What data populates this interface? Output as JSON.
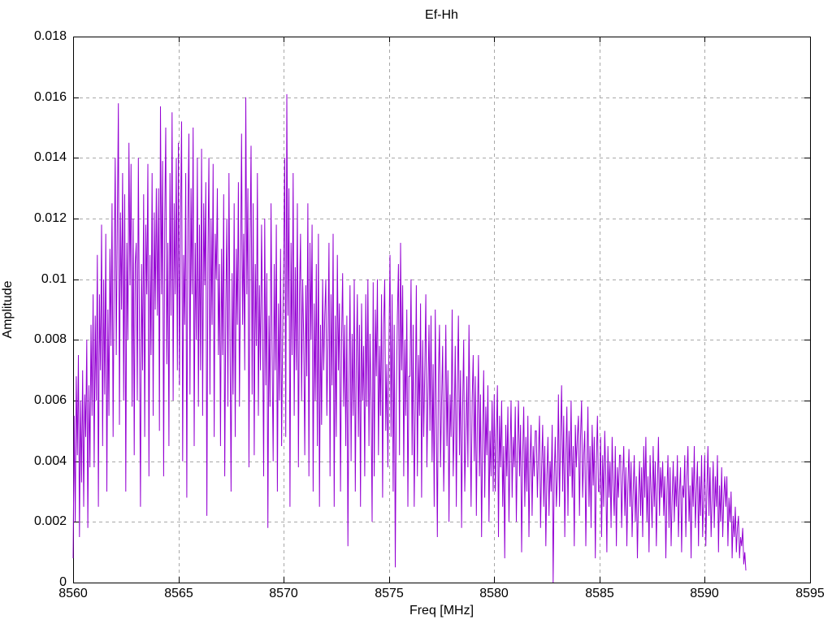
{
  "colors": {
    "line": "#9400d3",
    "grid": "#a8a8a8",
    "border": "#000000",
    "background": "#ffffff",
    "text": "#000000"
  },
  "chart_data": {
    "type": "line",
    "title": "Ef-Hh",
    "xlabel": "Freq [MHz]",
    "ylabel": "Amplitude",
    "xlim": [
      8560,
      8595
    ],
    "ylim": [
      0,
      0.018
    ],
    "grid": true,
    "legend": false,
    "line_color": "#9400d3",
    "x_tick_labels": [
      "8560",
      "8565",
      "8570",
      "8575",
      "8580",
      "8585",
      "8590",
      "8595"
    ],
    "y_tick_labels": [
      "0",
      "0.002",
      "0.004",
      "0.006",
      "0.008",
      "0.01",
      "0.012",
      "0.014",
      "0.016",
      "0.018"
    ],
    "x_start": 8560,
    "x_step": 0.05,
    "y_scale": 0.0001,
    "values_e4": [
      8,
      55,
      20,
      68,
      42,
      75,
      15,
      60,
      33,
      70,
      25,
      62,
      48,
      80,
      18,
      65,
      38,
      85,
      55,
      95,
      38,
      88,
      60,
      108,
      25,
      95,
      70,
      118,
      45,
      100,
      62,
      115,
      30,
      90,
      55,
      110,
      78,
      125,
      48,
      102,
      140,
      75,
      118,
      158,
      52,
      122,
      90,
      135,
      60,
      128,
      30,
      112,
      80,
      145,
      98,
      138,
      58,
      120,
      42,
      105,
      112,
      60,
      140,
      85,
      25,
      105,
      70,
      128,
      48,
      118,
      95,
      138,
      35,
      108,
      75,
      135,
      55,
      122,
      90,
      130,
      88,
      130,
      50,
      157,
      95,
      139,
      35,
      118,
      150,
      72,
      112,
      45,
      135,
      88,
      155,
      60,
      125,
      95,
      140,
      70,
      145,
      65,
      120,
      152,
      40,
      108,
      85,
      135,
      28,
      118,
      148,
      62,
      130,
      95,
      150,
      45,
      112,
      80,
      140,
      58,
      118,
      70,
      143,
      55,
      125,
      98,
      132,
      22,
      108,
      140,
      62,
      120,
      85,
      138,
      48,
      115,
      100,
      130,
      75,
      105,
      45,
      110,
      75,
      128,
      35,
      90,
      120,
      58,
      135,
      80,
      30,
      102,
      62,
      125,
      48,
      110,
      85,
      132,
      58,
      100,
      148,
      85,
      115,
      70,
      160,
      95,
      130,
      38,
      110,
      144,
      62,
      125,
      42,
      105,
      78,
      135,
      55,
      98,
      70,
      118,
      85,
      35,
      120,
      65,
      102,
      18,
      88,
      58,
      125,
      75,
      40,
      105,
      70,
      118,
      30,
      92,
      60,
      110,
      45,
      80,
      105,
      140,
      48,
      161,
      88,
      130,
      25,
      112,
      75,
      135,
      55,
      104,
      70,
      125,
      38,
      95,
      115,
      60,
      100,
      80,
      42,
      98,
      68,
      125,
      35,
      112,
      80,
      118,
      30,
      92,
      60,
      105,
      45,
      115,
      25,
      85,
      52,
      100,
      70,
      88,
      100,
      55,
      78,
      112,
      35,
      95,
      65,
      115,
      25,
      88,
      48,
      108,
      70,
      92,
      30,
      80,
      102,
      58,
      85,
      45,
      88,
      12,
      65,
      98,
      40,
      82,
      55,
      100,
      30,
      72,
      95,
      48,
      85,
      25,
      92,
      60,
      78,
      35,
      95,
      58,
      100,
      45,
      82,
      60,
      20,
      99,
      35,
      90,
      68,
      100,
      42,
      78,
      55,
      95,
      28,
      85,
      100,
      50,
      72,
      38,
      78,
      108,
      48,
      95,
      30,
      85,
      5,
      62,
      88,
      105,
      42,
      112,
      70,
      98,
      35,
      80,
      55,
      90,
      25,
      68,
      68,
      100,
      42,
      85,
      25,
      58,
      98,
      35,
      75,
      55,
      92,
      28,
      80,
      48,
      70,
      95,
      38,
      62,
      85,
      50,
      88,
      40,
      72,
      25,
      90,
      55,
      15,
      68,
      85,
      38,
      60,
      78,
      30,
      52,
      85,
      45,
      70,
      20,
      62,
      48,
      90,
      35,
      52,
      78,
      25,
      65,
      88,
      42,
      70,
      18,
      58,
      80,
      30,
      48,
      68,
      38,
      85,
      55,
      25,
      60,
      75,
      40,
      68,
      22,
      55,
      75,
      35,
      62,
      15,
      48,
      70,
      28,
      58,
      42,
      65,
      20,
      50,
      35,
      60,
      30,
      62,
      30,
      48,
      65,
      15,
      55,
      38,
      60,
      25,
      45,
      8,
      52,
      35,
      58,
      20,
      42,
      60,
      28,
      48,
      38,
      58,
      20,
      45,
      60,
      35,
      52,
      10,
      42,
      58,
      25,
      48,
      30,
      55,
      15,
      40,
      52,
      22,
      45,
      35,
      50,
      50,
      28,
      42,
      55,
      18,
      38,
      52,
      25,
      45,
      12,
      35,
      48,
      22,
      40,
      30,
      52,
      0,
      35,
      48,
      25,
      35,
      62,
      25,
      48,
      65,
      30,
      55,
      15,
      42,
      58,
      22,
      50,
      35,
      60,
      28,
      45,
      12,
      52,
      38,
      48,
      55,
      22,
      48,
      60,
      28,
      42,
      50,
      12,
      38,
      58,
      25,
      45,
      18,
      52,
      32,
      48,
      8,
      40,
      55,
      30,
      30,
      48,
      15,
      42,
      25,
      50,
      35,
      10,
      45,
      28,
      40,
      18,
      48,
      32,
      22,
      45,
      12,
      38,
      28,
      42,
      42,
      18,
      35,
      45,
      22,
      38,
      12,
      32,
      44,
      25,
      40,
      15,
      30,
      42,
      20,
      35,
      8,
      28,
      40,
      22,
      38,
      15,
      45,
      28,
      48,
      20,
      35,
      10,
      42,
      30,
      18,
      45,
      25,
      40,
      12,
      32,
      48,
      22,
      38,
      28,
      40,
      22,
      35,
      8,
      30,
      42,
      18,
      38,
      12,
      28,
      40,
      20,
      35,
      25,
      42,
      15,
      30,
      38,
      10,
      32,
      28,
      42,
      15,
      35,
      45,
      20,
      32,
      8,
      38,
      25,
      45,
      18,
      30,
      40,
      12,
      35,
      22,
      42,
      15,
      30,
      42,
      12,
      30,
      45,
      22,
      38,
      15,
      28,
      40,
      18,
      35,
      25,
      42,
      10,
      32,
      20,
      38,
      15,
      28,
      35,
      25,
      35,
      12,
      28,
      20,
      30,
      8,
      22,
      15,
      25,
      10,
      18,
      22,
      8,
      15,
      12,
      18,
      6,
      10,
      4
    ]
  }
}
